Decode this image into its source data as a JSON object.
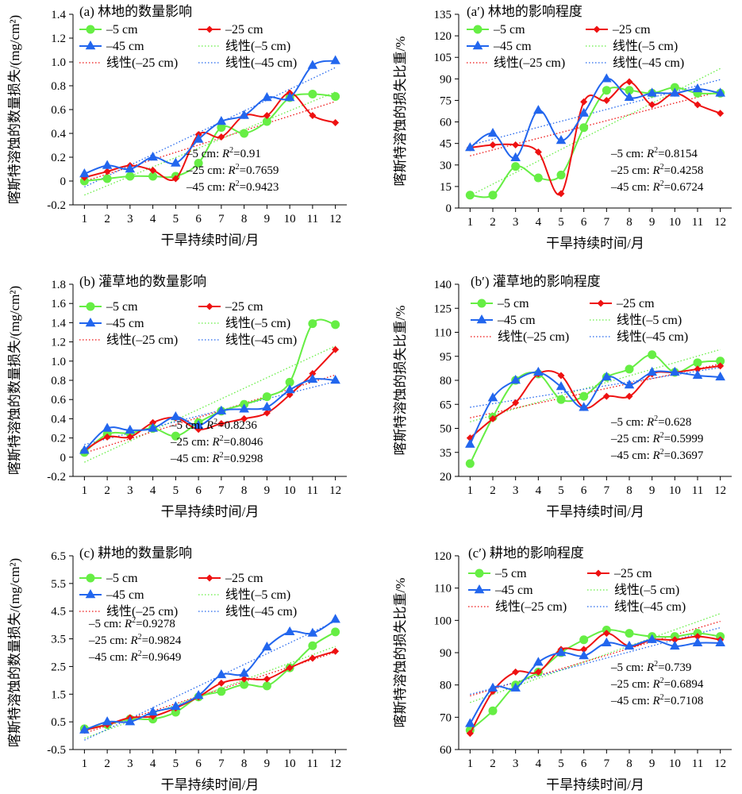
{
  "colors": {
    "s5": "#66ee44",
    "s25": "#ee1111",
    "s45": "#2266ee"
  },
  "chart_data": [
    {
      "panel": "a",
      "type": "line",
      "title": "(a) 林地的数量影响",
      "xlabel": "干旱持续时间/月",
      "ylabel": "喀斯特溶蚀的数量损失/(mg/cm²)",
      "x": [
        1,
        2,
        3,
        4,
        5,
        6,
        7,
        8,
        9,
        10,
        11,
        12
      ],
      "xticks": [
        "1",
        "2",
        "3",
        "4",
        "5",
        "6",
        "7",
        "8",
        "9",
        "10",
        "11",
        "12"
      ],
      "ylim": [
        -0.2,
        1.4
      ],
      "yticks": [
        "-0.2",
        "0",
        "0.2",
        "0.4",
        "0.6",
        "0.8",
        "1.0",
        "1.2",
        "1.4"
      ],
      "series": [
        {
          "name": "–5 cm",
          "values": [
            0.0,
            0.02,
            0.04,
            0.04,
            0.04,
            0.15,
            0.45,
            0.4,
            0.5,
            0.7,
            0.73,
            0.71
          ]
        },
        {
          "name": "–25 cm",
          "values": [
            0.03,
            0.08,
            0.13,
            0.09,
            0.02,
            0.39,
            0.37,
            0.55,
            0.55,
            0.74,
            0.55,
            0.49
          ]
        },
        {
          "name": "–45 cm",
          "values": [
            0.06,
            0.13,
            0.1,
            0.2,
            0.15,
            0.35,
            0.5,
            0.55,
            0.7,
            0.7,
            0.97,
            1.01
          ]
        }
      ],
      "trend_labels": [
        "线性(–5 cm)",
        "线性(–25 cm)",
        "线性(–45 cm)"
      ],
      "r2": [
        {
          "label": "–5 cm: ",
          "value": "0.91"
        },
        {
          "label": "–25 cm: ",
          "value": "0.7659"
        },
        {
          "label": "–45 cm: ",
          "value": "0.9423"
        }
      ]
    },
    {
      "panel": "a2",
      "type": "line",
      "title": "(a′) 林地的影响程度",
      "xlabel": "干旱持续时间/月",
      "ylabel": "喀斯特溶蚀的损失比重/%",
      "x": [
        1,
        2,
        3,
        4,
        5,
        6,
        7,
        8,
        9,
        10,
        11,
        12
      ],
      "xticks": [
        "1",
        "2",
        "3",
        "4",
        "5",
        "6",
        "7",
        "8",
        "9",
        "10",
        "11",
        "12"
      ],
      "ylim": [
        0,
        135
      ],
      "yticks": [
        "0",
        "15",
        "30",
        "45",
        "60",
        "75",
        "90",
        "105",
        "120",
        "135"
      ],
      "series": [
        {
          "name": "–5 cm",
          "values": [
            9,
            9,
            29,
            21,
            23,
            56,
            82,
            82,
            80,
            84,
            80,
            80
          ]
        },
        {
          "name": "–25 cm",
          "values": [
            42,
            44,
            44,
            39,
            10,
            74,
            75,
            88,
            72,
            80,
            72,
            66
          ]
        },
        {
          "name": "–45 cm",
          "values": [
            42,
            52,
            35,
            68,
            47,
            66,
            90,
            77,
            80,
            80,
            83,
            80
          ]
        }
      ],
      "trend_labels": [
        "线性(–5 cm)",
        "线性(–25 cm)",
        "线性(–45 cm)"
      ],
      "r2": [
        {
          "label": "–5 cm: ",
          "value": "0.8154"
        },
        {
          "label": "–25 cm: ",
          "value": "0.4258"
        },
        {
          "label": "–45 cm: ",
          "value": "0.6724"
        }
      ]
    },
    {
      "panel": "b",
      "type": "line",
      "title": "(b) 灌草地的数量影响",
      "xlabel": "干旱持续时间/月",
      "ylabel": "喀斯特溶蚀的数量损失/(mg/cm²)",
      "x": [
        1,
        2,
        3,
        4,
        5,
        6,
        7,
        8,
        9,
        10,
        11,
        12
      ],
      "xticks": [
        "1",
        "2",
        "3",
        "4",
        "5",
        "6",
        "7",
        "8",
        "9",
        "10",
        "11",
        "12"
      ],
      "ylim": [
        -0.2,
        1.8
      ],
      "yticks": [
        "-0.2",
        "0",
        "0.2",
        "0.4",
        "0.6",
        "0.8",
        "1.0",
        "1.2",
        "1.4",
        "1.6",
        "1.8"
      ],
      "series": [
        {
          "name": "–5 cm",
          "values": [
            0.05,
            0.24,
            0.25,
            0.3,
            0.22,
            0.36,
            0.48,
            0.55,
            0.63,
            0.78,
            1.39,
            1.38
          ]
        },
        {
          "name": "–25 cm",
          "values": [
            0.07,
            0.21,
            0.21,
            0.36,
            0.41,
            0.29,
            0.35,
            0.4,
            0.46,
            0.65,
            0.87,
            1.12
          ]
        },
        {
          "name": "–45 cm",
          "values": [
            0.07,
            0.3,
            0.28,
            0.3,
            0.42,
            0.33,
            0.48,
            0.5,
            0.52,
            0.7,
            0.81,
            0.8
          ]
        }
      ],
      "trend_labels": [
        "线性(–5 cm)",
        "线性(–25 cm)",
        "线性(–45 cm)"
      ],
      "r2": [
        {
          "label": "–5 cm: ",
          "value": "0.8236"
        },
        {
          "label": "–25 cm: ",
          "value": "0.8046"
        },
        {
          "label": "–45 cm: ",
          "value": "0.9298"
        }
      ]
    },
    {
      "panel": "b2",
      "type": "line",
      "title": "(b′) 灌草地的影响程度",
      "xlabel": "干旱持续时间/月",
      "ylabel": "喀斯特溶蚀的损失比重/%",
      "x": [
        1,
        2,
        3,
        4,
        5,
        6,
        7,
        8,
        9,
        10,
        11,
        12
      ],
      "xticks": [
        "1",
        "2",
        "3",
        "4",
        "5",
        "6",
        "7",
        "8",
        "9",
        "10",
        "11",
        "12"
      ],
      "ylim": [
        20,
        140
      ],
      "yticks": [
        "20",
        "35",
        "50",
        "65",
        "80",
        "95",
        "110",
        "125",
        "140"
      ],
      "series": [
        {
          "name": "–5 cm",
          "values": [
            28,
            57,
            80,
            84,
            68,
            70,
            82,
            87,
            96,
            85,
            91,
            92
          ]
        },
        {
          "name": "–25 cm",
          "values": [
            44,
            56,
            66,
            84,
            83,
            63,
            70,
            70,
            84,
            85,
            87,
            89
          ]
        },
        {
          "name": "–45 cm",
          "values": [
            40,
            69,
            80,
            85,
            76,
            63,
            82,
            77,
            85,
            85,
            83,
            82
          ]
        }
      ],
      "trend_labels": [
        "线性(–5 cm)",
        "线性(–25 cm)",
        "线性(–45 cm)"
      ],
      "r2": [
        {
          "label": "–5 cm: ",
          "value": "0.628"
        },
        {
          "label": "–25 cm: ",
          "value": "0.5999"
        },
        {
          "label": "–45 cm: ",
          "value": "0.3697"
        }
      ]
    },
    {
      "panel": "c",
      "type": "line",
      "title": "(c) 耕地的数量影响",
      "xlabel": "干旱持续时间/月",
      "ylabel": "喀斯特溶蚀的数量损失/(mg/cm²)",
      "x": [
        1,
        2,
        3,
        4,
        5,
        6,
        7,
        8,
        9,
        10,
        11,
        12
      ],
      "xticks": [
        "1",
        "2",
        "3",
        "4",
        "5",
        "6",
        "7",
        "8",
        "9",
        "10",
        "11",
        "12"
      ],
      "ylim": [
        -0.5,
        6.5
      ],
      "yticks": [
        "-0.5",
        "0.5",
        "1.5",
        "2.5",
        "3.5",
        "4.5",
        "5.5",
        "6.5"
      ],
      "series": [
        {
          "name": "–5 cm",
          "values": [
            0.25,
            0.4,
            0.6,
            0.6,
            0.85,
            1.4,
            1.6,
            1.85,
            1.8,
            2.45,
            3.25,
            3.75
          ]
        },
        {
          "name": "–25 cm",
          "values": [
            0.2,
            0.4,
            0.65,
            0.7,
            1.0,
            1.4,
            1.9,
            2.05,
            2.05,
            2.45,
            2.8,
            3.05
          ]
        },
        {
          "name": "–45 cm",
          "values": [
            0.2,
            0.5,
            0.5,
            0.85,
            1.05,
            1.45,
            2.2,
            2.25,
            3.2,
            3.75,
            3.7,
            4.2
          ]
        }
      ],
      "trend_labels": [
        "线性(–5 cm)",
        "线性(–25 cm)",
        "线性(–45 cm)"
      ],
      "r2": [
        {
          "label": "–5 cm: ",
          "value": "0.9278"
        },
        {
          "label": "–25 cm: ",
          "value": "0.9824"
        },
        {
          "label": "–45 cm: ",
          "value": "0.9649"
        }
      ]
    },
    {
      "panel": "c2",
      "type": "line",
      "title": "(c′) 耕地的影响程度",
      "xlabel": "干旱持续时间/月",
      "ylabel": "喀斯特溶蚀的损失比重/%",
      "x": [
        1,
        2,
        3,
        4,
        5,
        6,
        7,
        8,
        9,
        10,
        11,
        12
      ],
      "xticks": [
        "1",
        "2",
        "3",
        "4",
        "5",
        "6",
        "7",
        "8",
        "9",
        "10",
        "11",
        "12"
      ],
      "ylim": [
        60,
        120
      ],
      "yticks": [
        "60",
        "70",
        "80",
        "90",
        "100",
        "110",
        "120"
      ],
      "series": [
        {
          "name": "–5 cm",
          "values": [
            66,
            72,
            80,
            84,
            90,
            94,
            97,
            96,
            95,
            95,
            96,
            95
          ]
        },
        {
          "name": "–25 cm",
          "values": [
            65,
            78,
            84,
            84,
            91,
            91,
            96,
            92,
            94,
            94,
            95,
            94
          ]
        },
        {
          "name": "–45 cm",
          "values": [
            68,
            79,
            79,
            87,
            90,
            89,
            93,
            92,
            94,
            92,
            93,
            93
          ]
        }
      ],
      "trend_labels": [
        "线性(–5 cm)",
        "线性(–25 cm)",
        "线性(–45 cm)"
      ],
      "r2": [
        {
          "label": "–5 cm: ",
          "value": "0.739"
        },
        {
          "label": "–25 cm: ",
          "value": "0.6894"
        },
        {
          "label": "–45 cm: ",
          "value": "0.7108"
        }
      ]
    }
  ]
}
